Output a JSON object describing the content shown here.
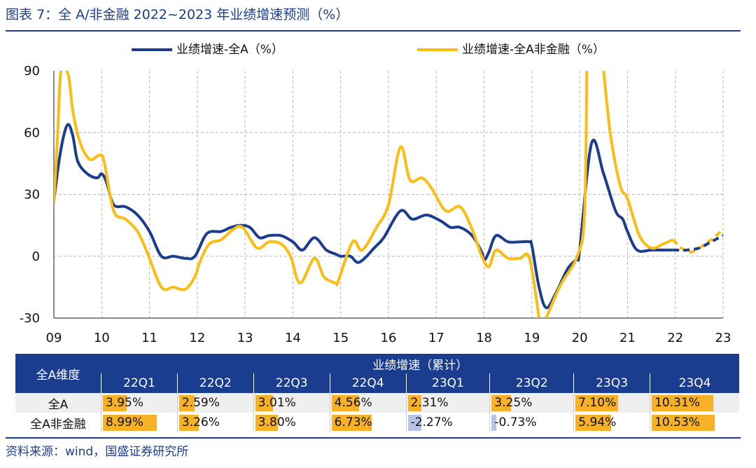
{
  "header": {
    "title": "图表 7：全 A/非金融 2022~2023 年业绩增速预测（%）"
  },
  "legend": {
    "series_a": "业绩增速-全A（%）",
    "series_b": "业绩增速-全A非金融（%）"
  },
  "colors": {
    "series_a": "#1b3d8f",
    "series_b": "#fbbc13",
    "bar_pos": "#f6b127",
    "bar_neg": "#b4c3e6"
  },
  "chart_data": {
    "type": "line",
    "title": "全 A/非金融 2022~2023 年业绩增速预测（%）",
    "xlabel": "",
    "ylabel": "",
    "x_ticks": [
      "09",
      "10",
      "11",
      "12",
      "13",
      "14",
      "15",
      "16",
      "17",
      "18",
      "19",
      "20",
      "21",
      "22",
      "23"
    ],
    "x_range": [
      2009,
      2023
    ],
    "ylim": [
      -30,
      90
    ],
    "y_ticks": [
      "90",
      "60",
      "30",
      "0",
      "-30"
    ],
    "grid": true,
    "legend_position": "top",
    "series": [
      {
        "name": "业绩增速-全A（%）",
        "actual": [
          [
            2009.0,
            27
          ],
          [
            2009.1,
            45
          ],
          [
            2009.2,
            58
          ],
          [
            2009.3,
            64
          ],
          [
            2009.4,
            58
          ],
          [
            2009.5,
            46
          ],
          [
            2009.7,
            40
          ],
          [
            2009.9,
            38
          ],
          [
            2010.0,
            40
          ],
          [
            2010.1,
            36
          ],
          [
            2010.25,
            25
          ],
          [
            2010.5,
            24
          ],
          [
            2010.75,
            20
          ],
          [
            2011.0,
            12
          ],
          [
            2011.25,
            0
          ],
          [
            2011.5,
            0
          ],
          [
            2011.75,
            -1
          ],
          [
            2011.95,
            0
          ],
          [
            2012.2,
            11
          ],
          [
            2012.5,
            12
          ],
          [
            2012.7,
            14
          ],
          [
            2012.9,
            15
          ],
          [
            2013.1,
            14
          ],
          [
            2013.3,
            9
          ],
          [
            2013.5,
            10
          ],
          [
            2013.75,
            10
          ],
          [
            2014.0,
            7
          ],
          [
            2014.2,
            3
          ],
          [
            2014.45,
            9
          ],
          [
            2014.7,
            3
          ],
          [
            2014.9,
            1
          ],
          [
            2015.0,
            0
          ],
          [
            2015.2,
            0
          ],
          [
            2015.35,
            -3
          ],
          [
            2015.5,
            -1
          ],
          [
            2015.7,
            4
          ],
          [
            2015.9,
            9
          ],
          [
            2016.25,
            22
          ],
          [
            2016.5,
            18
          ],
          [
            2016.8,
            20
          ],
          [
            2017.1,
            17
          ],
          [
            2017.3,
            14
          ],
          [
            2017.5,
            14
          ],
          [
            2017.75,
            10
          ],
          [
            2017.95,
            2
          ],
          [
            2018.0,
            -2
          ],
          [
            2018.1,
            2
          ],
          [
            2018.25,
            10
          ],
          [
            2018.5,
            7
          ],
          [
            2018.75,
            7
          ],
          [
            2018.95,
            7
          ],
          [
            2019.0,
            5
          ],
          [
            2019.15,
            -15
          ],
          [
            2019.3,
            -25
          ],
          [
            2019.5,
            -18
          ],
          [
            2019.75,
            -6
          ],
          [
            2019.95,
            -1
          ],
          [
            2020.0,
            3
          ],
          [
            2020.25,
            55
          ],
          [
            2020.5,
            40
          ],
          [
            2020.75,
            22
          ],
          [
            2020.9,
            18
          ],
          [
            2021.0,
            12
          ],
          [
            2021.2,
            3
          ],
          [
            2021.5,
            3
          ],
          [
            2021.75,
            3
          ],
          [
            2021.95,
            3
          ]
        ],
        "forecast": [
          [
            2021.95,
            3
          ],
          [
            2022.0,
            3
          ],
          [
            2022.25,
            3
          ],
          [
            2022.5,
            4
          ],
          [
            2022.75,
            7
          ],
          [
            2023.0,
            10
          ]
        ]
      },
      {
        "name": "业绩增速-全A非金融（%）",
        "actual": [
          [
            2009.0,
            26
          ],
          [
            2009.08,
            60
          ],
          [
            2009.15,
            90
          ],
          [
            2009.3,
            88
          ],
          [
            2009.4,
            70
          ],
          [
            2009.55,
            55
          ],
          [
            2009.75,
            47
          ],
          [
            2009.95,
            49
          ],
          [
            2010.05,
            46
          ],
          [
            2010.25,
            22
          ],
          [
            2010.5,
            18
          ],
          [
            2010.75,
            12
          ],
          [
            2010.95,
            2
          ],
          [
            2011.25,
            -15
          ],
          [
            2011.5,
            -15
          ],
          [
            2011.75,
            -16
          ],
          [
            2011.95,
            -10
          ],
          [
            2012.05,
            -3
          ],
          [
            2012.25,
            6
          ],
          [
            2012.5,
            8
          ],
          [
            2012.75,
            13
          ],
          [
            2012.95,
            14
          ],
          [
            2013.25,
            4
          ],
          [
            2013.5,
            7
          ],
          [
            2013.75,
            6
          ],
          [
            2013.95,
            0
          ],
          [
            2014.15,
            -13
          ],
          [
            2014.45,
            -1
          ],
          [
            2014.65,
            -10
          ],
          [
            2014.9,
            -13
          ],
          [
            2014.95,
            -12
          ],
          [
            2015.25,
            7
          ],
          [
            2015.45,
            3
          ],
          [
            2015.75,
            14
          ],
          [
            2016.0,
            25
          ],
          [
            2016.25,
            53
          ],
          [
            2016.45,
            37
          ],
          [
            2016.7,
            38
          ],
          [
            2016.9,
            33
          ],
          [
            2017.2,
            22
          ],
          [
            2017.5,
            24
          ],
          [
            2017.75,
            13
          ],
          [
            2017.95,
            0
          ],
          [
            2018.1,
            -5
          ],
          [
            2018.25,
            3
          ],
          [
            2018.5,
            -1
          ],
          [
            2018.75,
            -1
          ],
          [
            2018.95,
            -1
          ],
          [
            2019.15,
            -30
          ]
        ],
        "actual_2": [
          [
            2019.3,
            -30
          ],
          [
            2019.6,
            -14
          ],
          [
            2019.95,
            0
          ],
          [
            2020.1,
            20
          ],
          [
            2020.15,
            90
          ]
        ],
        "actual_3": [
          [
            2020.5,
            90
          ],
          [
            2020.65,
            58
          ],
          [
            2020.85,
            34
          ],
          [
            2021.0,
            28
          ],
          [
            2021.25,
            10
          ],
          [
            2021.5,
            4
          ],
          [
            2021.75,
            6
          ],
          [
            2021.95,
            8
          ]
        ],
        "forecast": [
          [
            2021.95,
            8
          ],
          [
            2022.25,
            2
          ],
          [
            2022.5,
            4
          ],
          [
            2022.75,
            8
          ],
          [
            2023.0,
            13
          ]
        ]
      }
    ]
  },
  "table": {
    "dimension_header": "全A维度",
    "group_header": "业绩增速（累计）",
    "quarters": [
      "22Q1",
      "22Q2",
      "22Q3",
      "22Q4",
      "23Q1",
      "23Q2",
      "23Q3",
      "23Q4"
    ],
    "rows": [
      {
        "label": "全A",
        "values": [
          "3.95%",
          "2.59%",
          "3.01%",
          "4.56%",
          "2.31%",
          "3.25%",
          "7.10%",
          "10.31%"
        ],
        "numbers": [
          3.95,
          2.59,
          3.01,
          4.56,
          2.31,
          3.25,
          7.1,
          10.31
        ]
      },
      {
        "label": "全A非金融",
        "values": [
          "8.99%",
          "3.26%",
          "3.80%",
          "6.73%",
          "-2.27%",
          "-0.73%",
          "5.94%",
          "10.53%"
        ],
        "numbers": [
          8.99,
          3.26,
          3.8,
          6.73,
          -2.27,
          -0.73,
          5.94,
          10.53
        ]
      }
    ]
  },
  "footer": {
    "source": "资料来源：wind，国盛证券研究所"
  }
}
